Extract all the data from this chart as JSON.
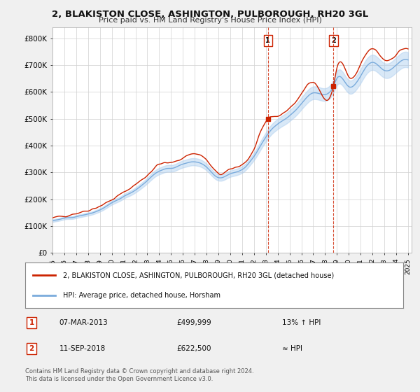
{
  "title_line1": "2, BLAKISTON CLOSE, ASHINGTON, PULBOROUGH, RH20 3GL",
  "title_line2": "Price paid vs. HM Land Registry's House Price Index (HPI)",
  "ylabel_ticks": [
    "£0",
    "£100K",
    "£200K",
    "£300K",
    "£400K",
    "£500K",
    "£600K",
    "£700K",
    "£800K"
  ],
  "ytick_vals": [
    0,
    100000,
    200000,
    300000,
    400000,
    500000,
    600000,
    700000,
    800000
  ],
  "ylim": [
    0,
    840000
  ],
  "hpi_color": "#7aabdc",
  "hpi_fill_color": "#aaccee",
  "price_color": "#cc2200",
  "sale1_year": 2013.18,
  "sale1_price": 499999,
  "sale2_year": 2018.71,
  "sale2_price": 622500,
  "legend_label1": "2, BLAKISTON CLOSE, ASHINGTON, PULBOROUGH, RH20 3GL (detached house)",
  "legend_label2": "HPI: Average price, detached house, Horsham",
  "annotation1_label": "1",
  "annotation1_date": "07-MAR-2013",
  "annotation1_price": "£499,999",
  "annotation1_hpi": "13% ↑ HPI",
  "annotation2_label": "2",
  "annotation2_date": "11-SEP-2018",
  "annotation2_price": "£622,500",
  "annotation2_hpi": "≈ HPI",
  "footer": "Contains HM Land Registry data © Crown copyright and database right 2024.\nThis data is licensed under the Open Government Licence v3.0.",
  "background_color": "#f0f0f0",
  "plot_bg_color": "#ffffff"
}
